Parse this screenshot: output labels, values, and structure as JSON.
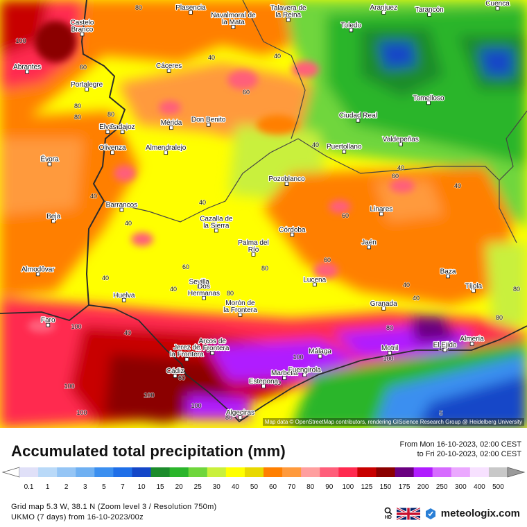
{
  "map": {
    "attribution": "Map data © OpenStreetMap contributors, rendering GIScience Research Group @ Heidelberg University",
    "cities": [
      {
        "name": "Plasencia",
        "lon": -6.09,
        "lat": 40.03
      },
      {
        "name": "Navalmoral de la Mata",
        "lon": -5.54,
        "lat": 39.89
      },
      {
        "name": "Talavera de la Reina",
        "lon": -4.83,
        "lat": 39.96
      },
      {
        "name": "Aranjuez",
        "lon": -3.6,
        "lat": 40.03
      },
      {
        "name": "Tarancón",
        "lon": -3.01,
        "lat": 40.01
      },
      {
        "name": "Cuenca",
        "lon": -2.13,
        "lat": 40.07
      },
      {
        "name": "Castelo Branco",
        "lon": -7.49,
        "lat": 39.82
      },
      {
        "name": "Toledo",
        "lon": -4.02,
        "lat": 39.86
      },
      {
        "name": "Abrantes",
        "lon": -8.2,
        "lat": 39.46
      },
      {
        "name": "Cáceres",
        "lon": -6.37,
        "lat": 39.47
      },
      {
        "name": "Portalegre",
        "lon": -7.43,
        "lat": 39.29
      },
      {
        "name": "Tomelloso",
        "lon": -3.02,
        "lat": 39.16
      },
      {
        "name": "Ciudad Real",
        "lon": -3.93,
        "lat": 38.99
      },
      {
        "name": "Mérida",
        "lon": -6.34,
        "lat": 38.92
      },
      {
        "name": "Don Benito",
        "lon": -5.86,
        "lat": 38.95
      },
      {
        "name": "Badajoz",
        "lon": -6.97,
        "lat": 38.88
      },
      {
        "name": "Valdepeñas",
        "lon": -3.38,
        "lat": 38.76
      },
      {
        "name": "Elvas",
        "lon": -7.16,
        "lat": 38.88
      },
      {
        "name": "Olivenza",
        "lon": -7.1,
        "lat": 38.68
      },
      {
        "name": "Almendralejo",
        "lon": -6.41,
        "lat": 38.68
      },
      {
        "name": "Puertollano",
        "lon": -4.11,
        "lat": 38.69
      },
      {
        "name": "Évora",
        "lon": -7.91,
        "lat": 38.57
      },
      {
        "name": "Pozoblanco",
        "lon": -4.85,
        "lat": 38.38
      },
      {
        "name": "Linares",
        "lon": -3.63,
        "lat": 38.09
      },
      {
        "name": "Barrancos",
        "lon": -6.98,
        "lat": 38.13
      },
      {
        "name": "Beja",
        "lon": -7.86,
        "lat": 38.02
      },
      {
        "name": "Cazalla de la Sierra",
        "lon": -5.76,
        "lat": 37.93
      },
      {
        "name": "Córdoba",
        "lon": -4.78,
        "lat": 37.89
      },
      {
        "name": "Jaén",
        "lon": -3.79,
        "lat": 37.77
      },
      {
        "name": "Palma del Río",
        "lon": -5.28,
        "lat": 37.7
      },
      {
        "name": "Almodôvar",
        "lon": -8.06,
        "lat": 37.51
      },
      {
        "name": "Baza",
        "lon": -2.77,
        "lat": 37.49
      },
      {
        "name": "Lucena",
        "lon": -4.49,
        "lat": 37.41
      },
      {
        "name": "Sevilla",
        "lon": -5.98,
        "lat": 37.39
      },
      {
        "name": "Tíjola",
        "lon": -2.44,
        "lat": 37.35
      },
      {
        "name": "Huelva",
        "lon": -6.95,
        "lat": 37.26
      },
      {
        "name": "Dos Hermanas",
        "lon": -5.92,
        "lat": 37.28
      },
      {
        "name": "Morón de la Frontera",
        "lon": -5.45,
        "lat": 37.12
      },
      {
        "name": "Granada",
        "lon": -3.6,
        "lat": 37.18
      },
      {
        "name": "Faro",
        "lon": -7.93,
        "lat": 37.02
      },
      {
        "name": "Arcos de la Frontera",
        "lon": -5.81,
        "lat": 36.75
      },
      {
        "name": "Almería",
        "lon": -2.46,
        "lat": 36.84
      },
      {
        "name": "Motril",
        "lon": -3.52,
        "lat": 36.75
      },
      {
        "name": "Málaga",
        "lon": -4.42,
        "lat": 36.72
      },
      {
        "name": "El Ejido",
        "lon": -2.81,
        "lat": 36.78
      },
      {
        "name": "Cádiz",
        "lon": -6.29,
        "lat": 36.53
      },
      {
        "name": "Jerez de la Frontera",
        "lon": -6.14,
        "lat": 36.69
      },
      {
        "name": "Marbella",
        "lon": -4.88,
        "lat": 36.51
      },
      {
        "name": "Fuengirola",
        "lon": -4.62,
        "lat": 36.54
      },
      {
        "name": "Estepona",
        "lon": -5.15,
        "lat": 36.43
      },
      {
        "name": "Algeciras",
        "lon": -5.45,
        "lat": 36.13
      }
    ],
    "contour_labels": [
      "80",
      "100",
      "40",
      "60",
      "40",
      "80",
      "60",
      "80",
      "80",
      "40",
      "40",
      "60",
      "40",
      "40",
      "40",
      "40",
      "60",
      "60",
      "60",
      "80",
      "40",
      "40",
      "40",
      "80",
      "80",
      "100",
      "80",
      "40",
      "60",
      "60",
      "100",
      "100",
      "100",
      "100",
      "100",
      "100",
      "80",
      "100",
      "80",
      "5",
      "60",
      "40",
      "80"
    ],
    "colors": {
      "sea": "#0d47c9",
      "light_rain": "#2ca02c",
      "moderate": "#ffff00",
      "orange": "#ff7f00",
      "heavy": "#ff2a4f",
      "very_heavy": "#8b0000",
      "extreme": "#b01cff",
      "border": "#2b2b2b",
      "region_border": "#444444"
    }
  },
  "legend": {
    "title": "Accumulated total precipitation (mm)",
    "period_from": "From Mon 16-10-2023, 02:00 CEST",
    "period_to": "to Fri 20-10-2023, 02:00 CEST",
    "scale": [
      {
        "label": "0.1",
        "color": "#e0e0f8"
      },
      {
        "label": "1",
        "color": "#b9d9f8"
      },
      {
        "label": "2",
        "color": "#95c5f5"
      },
      {
        "label": "3",
        "color": "#6fb0f2"
      },
      {
        "label": "5",
        "color": "#3b8ff0"
      },
      {
        "label": "7",
        "color": "#1f6fe8"
      },
      {
        "label": "10",
        "color": "#1447c8"
      },
      {
        "label": "15",
        "color": "#1c8c2c"
      },
      {
        "label": "20",
        "color": "#2bb52b"
      },
      {
        "label": "25",
        "color": "#6fd63c"
      },
      {
        "label": "30",
        "color": "#c9f03c"
      },
      {
        "label": "40",
        "color": "#ffff00"
      },
      {
        "label": "50",
        "color": "#e8d800"
      },
      {
        "label": "60",
        "color": "#ff7f00"
      },
      {
        "label": "70",
        "color": "#ff9a3c"
      },
      {
        "label": "80",
        "color": "#ff9f9f"
      },
      {
        "label": "90",
        "color": "#ff5e7a"
      },
      {
        "label": "100",
        "color": "#ff2a4f"
      },
      {
        "label": "125",
        "color": "#c80000"
      },
      {
        "label": "150",
        "color": "#8b0000"
      },
      {
        "label": "175",
        "color": "#6a0080"
      },
      {
        "label": "200",
        "color": "#b01cff"
      },
      {
        "label": "250",
        "color": "#d66bff"
      },
      {
        "label": "300",
        "color": "#eba8ff"
      },
      {
        "label": "400",
        "color": "#f7e1ff"
      },
      {
        "label": "500",
        "color": "#c8c8c8"
      }
    ]
  },
  "footer": {
    "grid_info": "Grid map 5.3 W, 38.1 N (Zoom level 3 / Resolution 750m)",
    "model_info": "UKMO (7 days) from 16-10-2023/00z",
    "brand": "meteologix.com",
    "hd_label": "HD"
  }
}
